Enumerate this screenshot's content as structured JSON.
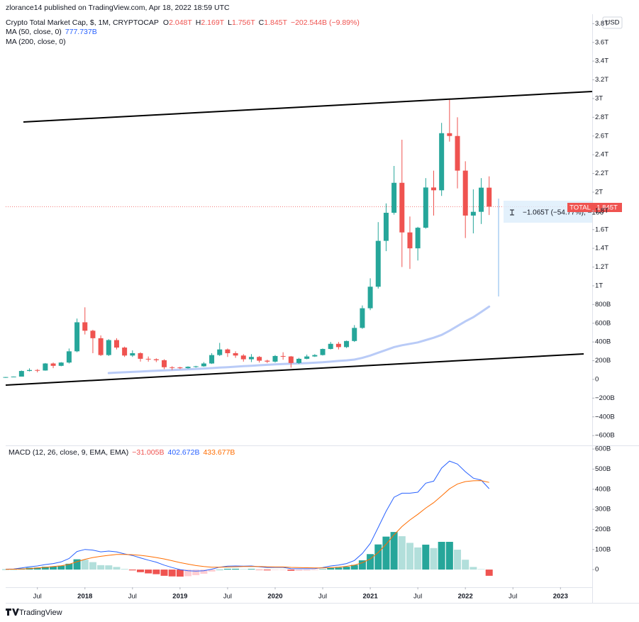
{
  "chart_data": {
    "type": "candlestick",
    "attribution": "zlorance14 published on TradingView.com, Apr 18, 2022 18:59 UTC",
    "title": "Crypto Total Market Cap, $, 1M, CRYPTOCAP",
    "last_bar": [
      {
        "label": "O",
        "value": "2.048T"
      },
      {
        "label": "H",
        "value": "2.169T"
      },
      {
        "label": "L",
        "value": "1.756T"
      },
      {
        "label": "C",
        "value": "1.845T"
      }
    ],
    "change": "−202.544B (−9.89%)",
    "currency": "USD",
    "footer": "TradingView",
    "price_tag": {
      "label": "TOTAL",
      "value_label": "1.845T"
    },
    "measure": "−1.065T (−54.77%), −106",
    "colors": {
      "up": "#26a69a",
      "down": "#ef5350"
    },
    "x": [
      "2017-03",
      "2017-04",
      "2017-05",
      "2017-06",
      "2017-07",
      "2017-08",
      "2017-09",
      "2017-10",
      "2017-11",
      "2017-12",
      "2018-01",
      "2018-02",
      "2018-03",
      "2018-04",
      "2018-05",
      "2018-06",
      "2018-07",
      "2018-08",
      "2018-09",
      "2018-10",
      "2018-11",
      "2018-12",
      "2019-01",
      "2019-02",
      "2019-03",
      "2019-04",
      "2019-05",
      "2019-06",
      "2019-07",
      "2019-08",
      "2019-09",
      "2019-10",
      "2019-11",
      "2019-12",
      "2020-01",
      "2020-02",
      "2020-03",
      "2020-04",
      "2020-05",
      "2020-06",
      "2020-07",
      "2020-08",
      "2020-09",
      "2020-10",
      "2020-11",
      "2020-12",
      "2021-01",
      "2021-02",
      "2021-03",
      "2021-04",
      "2021-05",
      "2021-06",
      "2021-07",
      "2021-08",
      "2021-09",
      "2021-10",
      "2021-11",
      "2021-12",
      "2022-01",
      "2022-02",
      "2022-03",
      "2022-04"
    ],
    "xlim": [
      "2017-03",
      "2023-05"
    ],
    "xticks": [
      {
        "value": "2017-07",
        "label": "Jul"
      },
      {
        "value": "2018-01",
        "label": "2018"
      },
      {
        "value": "2018-07",
        "label": "Jul"
      },
      {
        "value": "2019-01",
        "label": "2019"
      },
      {
        "value": "2019-07",
        "label": "Jul"
      },
      {
        "value": "2020-01",
        "label": "2020"
      },
      {
        "value": "2020-07",
        "label": "Jul"
      },
      {
        "value": "2021-01",
        "label": "2021"
      },
      {
        "value": "2021-07",
        "label": "Jul"
      },
      {
        "value": "2022-01",
        "label": "2022"
      },
      {
        "value": "2022-07",
        "label": "Jul"
      },
      {
        "value": "2023-01",
        "label": "2023"
      }
    ],
    "ylim": [
      -705,
      3886
    ],
    "yticks": [
      {
        "value": 3800,
        "label": "3.8T"
      },
      {
        "value": 3600,
        "label": "3.6T"
      },
      {
        "value": 3400,
        "label": "3.4T"
      },
      {
        "value": 3200,
        "label": "3.2T"
      },
      {
        "value": 3000,
        "label": "3T"
      },
      {
        "value": 2800,
        "label": "2.8T"
      },
      {
        "value": 2600,
        "label": "2.6T"
      },
      {
        "value": 2400,
        "label": "2.4T"
      },
      {
        "value": 2200,
        "label": "2.2T"
      },
      {
        "value": 2000,
        "label": "2T"
      },
      {
        "value": 1800,
        "label": "1.8T"
      },
      {
        "value": 1600,
        "label": "1.6T"
      },
      {
        "value": 1400,
        "label": "1.4T"
      },
      {
        "value": 1200,
        "label": "1.2T"
      },
      {
        "value": 1000,
        "label": "1T"
      },
      {
        "value": 800,
        "label": "800B"
      },
      {
        "value": 600,
        "label": "600B"
      },
      {
        "value": 400,
        "label": "400B"
      },
      {
        "value": 200,
        "label": "200B"
      },
      0,
      {
        "value": -200,
        "label": "−200B"
      },
      {
        "value": -400,
        "label": "−400B"
      },
      {
        "value": -600,
        "label": "−600B"
      }
    ],
    "series": [
      {
        "name": "TOTAL",
        "open": [
          18,
          25,
          30,
          90,
          100,
          95,
          170,
          145,
          180,
          300,
          610,
          520,
          440,
          260,
          420,
          340,
          255,
          280,
          220,
          215,
          205,
          130,
          128,
          120,
          135,
          140,
          170,
          260,
          320,
          280,
          255,
          215,
          240,
          200,
          190,
          250,
          245,
          175,
          220,
          245,
          260,
          325,
          380,
          345,
          410,
          550,
          760,
          990,
          1480,
          1780,
          2100,
          1570,
          1400,
          1620,
          2050,
          2020,
          2630,
          2600,
          2230,
          1750,
          1790,
          2048
        ],
        "high": [
          26,
          31,
          95,
          118,
          110,
          175,
          180,
          185,
          330,
          650,
          770,
          530,
          470,
          430,
          440,
          350,
          310,
          290,
          245,
          225,
          215,
          140,
          135,
          140,
          145,
          185,
          280,
          390,
          330,
          300,
          270,
          270,
          250,
          210,
          260,
          290,
          250,
          230,
          265,
          270,
          330,
          400,
          400,
          415,
          580,
          790,
          1080,
          1680,
          1880,
          2280,
          2560,
          1740,
          1630,
          2150,
          2230,
          2740,
          3000,
          2800,
          2330,
          2030,
          2150,
          2169
        ],
        "low": [
          17,
          24,
          30,
          85,
          75,
          93,
          120,
          140,
          170,
          290,
          480,
          280,
          250,
          250,
          320,
          240,
          240,
          190,
          190,
          185,
          110,
          100,
          110,
          115,
          125,
          135,
          165,
          250,
          240,
          230,
          190,
          185,
          180,
          175,
          180,
          210,
          125,
          165,
          215,
          240,
          255,
          320,
          320,
          335,
          400,
          540,
          740,
          970,
          1370,
          1760,
          1200,
          1180,
          1270,
          1610,
          1750,
          1960,
          2540,
          2040,
          1510,
          1560,
          1660,
          1756
        ],
        "close": [
          25,
          30,
          90,
          100,
          95,
          170,
          145,
          180,
          300,
          610,
          520,
          440,
          260,
          420,
          340,
          255,
          280,
          220,
          215,
          205,
          130,
          128,
          120,
          135,
          140,
          170,
          260,
          320,
          280,
          255,
          215,
          240,
          200,
          190,
          250,
          245,
          175,
          220,
          245,
          260,
          325,
          380,
          345,
          410,
          550,
          760,
          990,
          1480,
          1780,
          2100,
          1570,
          1400,
          1620,
          2050,
          2020,
          2630,
          2600,
          2230,
          1750,
          1790,
          2048,
          1845
        ]
      }
    ],
    "ma": [
      {
        "name": "MA (50, close, 0)",
        "color": "#b9cbf7",
        "label_color": "#2962ff",
        "value_label": "777.737B",
        "values": [
          null,
          null,
          null,
          null,
          null,
          null,
          null,
          null,
          null,
          null,
          null,
          null,
          null,
          68,
          72,
          76,
          80,
          84,
          88,
          92,
          96,
          100,
          104,
          108,
          112,
          116,
          121,
          126,
          131,
          136,
          141,
          146,
          151,
          156,
          161,
          165,
          168,
          171,
          174,
          178,
          183,
          190,
          197,
          203,
          212,
          230,
          255,
          285,
          315,
          345,
          365,
          380,
          395,
          420,
          445,
          475,
          520,
          570,
          620,
          665,
          720,
          777.737
        ]
      },
      {
        "name": "MA (200, close, 0)"
      }
    ],
    "macd": {
      "name": "MACD (12, 26, close, 9, EMA, EMA)",
      "ylim": [
        -88,
        618
      ],
      "yticks": [
        {
          "value": 600,
          "label": "600B"
        },
        {
          "value": 500,
          "label": "500B"
        },
        {
          "value": 400,
          "label": "400B"
        },
        {
          "value": 300,
          "label": "300B"
        },
        {
          "value": 200,
          "label": "200B"
        },
        {
          "value": 100,
          "label": "100B"
        },
        0
      ],
      "histogram": {
        "value_label": "−31.005B",
        "color": "#ef5350",
        "values": [
          1,
          1,
          5,
          9,
          10,
          14,
          15,
          19,
          29,
          51,
          49,
          37,
          22,
          21,
          13,
          3,
          -4,
          -13,
          -19,
          -23,
          -31,
          -34,
          -35,
          -33,
          -28,
          -21,
          -10,
          0,
          4,
          4,
          2,
          3,
          -1,
          -4,
          -2,
          -2,
          -6,
          -6,
          -5,
          -3,
          2,
          8,
          10,
          14,
          23,
          46,
          77,
          125,
          164,
          187,
          166,
          133,
          110,
          124,
          107,
          138,
          138,
          99,
          49,
          13,
          2,
          -31.005
        ]
      },
      "series": [
        {
          "color": "#2962ff",
          "value_label": "402.672B",
          "values": [
            2,
            3,
            8,
            14,
            18,
            25,
            30,
            38,
            55,
            90,
            100,
            97,
            88,
            92,
            88,
            78,
            70,
            58,
            47,
            37,
            22,
            10,
            0,
            -6,
            -8,
            -6,
            2,
            12,
            17,
            18,
            17,
            18,
            14,
            10,
            11,
            11,
            5,
            4,
            4,
            5,
            10,
            18,
            22,
            30,
            45,
            80,
            130,
            210,
            290,
            360,
            380,
            380,
            385,
            430,
            440,
            505,
            540,
            525,
            487,
            455,
            445,
            402.672
          ]
        },
        {
          "color": "#ff6d00",
          "value_label": "433.677B",
          "values": [
            1,
            2,
            3,
            5,
            8,
            11,
            15,
            19,
            26,
            39,
            51,
            60,
            66,
            71,
            75,
            75,
            74,
            71,
            66,
            60,
            53,
            44,
            35,
            27,
            20,
            15,
            12,
            12,
            13,
            14,
            15,
            15,
            15,
            14,
            13,
            13,
            11,
            10,
            9,
            8,
            8,
            10,
            12,
            16,
            22,
            34,
            53,
            85,
            126,
            173,
            214,
            247,
            275,
            306,
            333,
            367,
            402,
            426,
            438,
            442,
            443,
            433.677
          ]
        }
      ]
    }
  }
}
